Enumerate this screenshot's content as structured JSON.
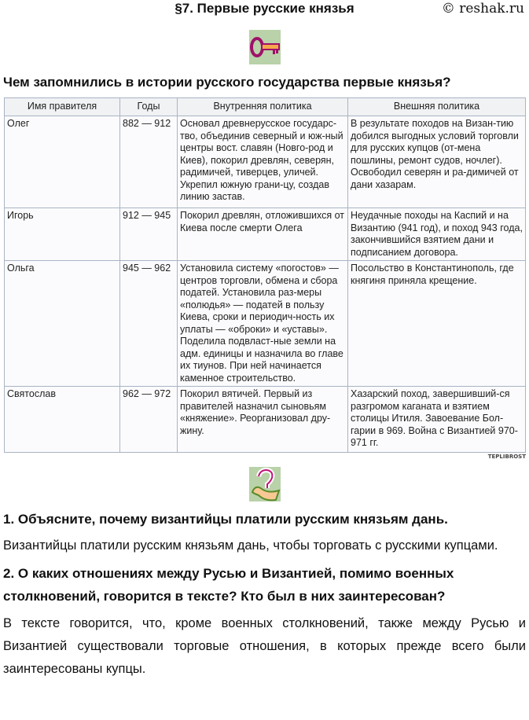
{
  "header": {
    "title": "§7. Первые русские князья",
    "brand": "© reshak.ru"
  },
  "icons": {
    "key": "key-icon",
    "question": "question-icon"
  },
  "question_main": "Чем запомнились в истории русского государства первые князья?",
  "table": {
    "headers": [
      "Имя правителя",
      "Годы",
      "Внутренняя политика",
      "Внешняя политика"
    ],
    "rows": [
      [
        "Олег",
        "882 — 912",
        "Основал древнерусское государс-тво, объединив северный и юж-ный центры вост. славян (Новго-род и Киев), покорил древлян, северян, радимичей, тиверцев, уличей. Укрепил южную грани-цу, создав линию застав.",
        "В результате походов на Визан-тию добился выгодных условий торговли для русских купцов (от-мена пошлины, ремонт судов, ночлег). Освободил северян и ра-димичей от дани хазарам."
      ],
      [
        "Игорь",
        "912 — 945",
        "Покорил древлян, отложившихся от Киева после смерти Олега",
        "Неудачные походы на Каспий и на Византию (941 год), и поход 943 года, закончившийся взятием дани и подписанием договора."
      ],
      [
        "Ольга",
        "945 — 962",
        "Установила систему «погостов» — центров торговли, обмена и сбора податей. Установила раз-меры «полюдья» — податей в пользу Киева, сроки и периодич-ность их уплаты — «оброки» и «уставы». Поделила подвласт-ные земли на адм. единицы и назначила во главе их тиунов. При ней начинается каменное строительство.",
        "Посольство в Константинополь, где княгиня приняла крещение."
      ],
      [
        "Святослав",
        "962 — 972",
        "Покорил вятичей. Первый из правителей назначил сыновьям «княжение». Реорганизовал дру-жину.",
        "Хазарский поход, завершивший-ся разгромом каганата и взятием столицы Итиля. Завоевание Бол-гарии в 969. Война с Византией 970-971 гг."
      ]
    ],
    "watermark": "TEPLIBROST"
  },
  "q1": {
    "question": "1. Объясните, почему византийцы платили русским князьям дань.",
    "answer": "Византийцы платили русским князьям дань, чтобы торговать с русскими купцами."
  },
  "q2": {
    "question": "2. О каких отношениях между Русью и Византией, помимо военных столкновений, говорится в тексте? Кто был в них заинтересован?",
    "answer": "В тексте говорится, что, кроме военных столкновений, также между Русью и Византией существовали торговые отношения, в которых прежде всего были заинтересованы купцы."
  }
}
